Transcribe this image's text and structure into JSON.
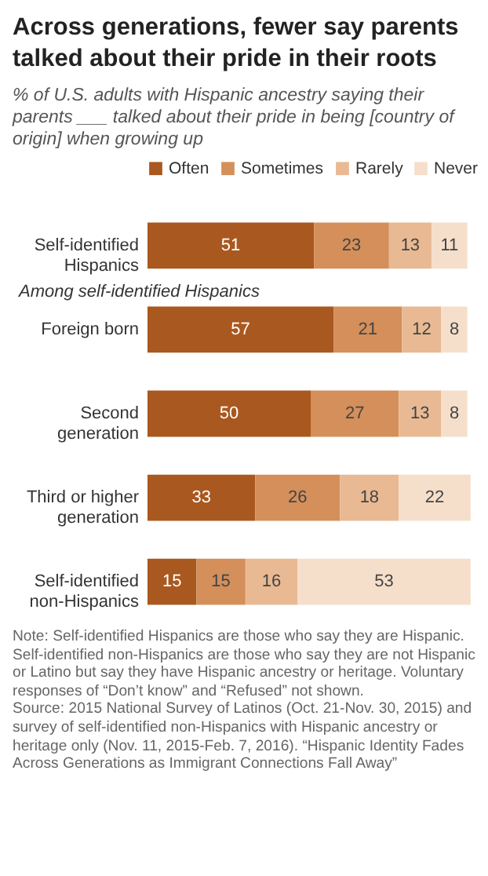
{
  "chart_data": {
    "type": "bar",
    "orientation": "horizontal",
    "stacked": true,
    "data_labels": true,
    "legend": "top",
    "title": "Across generations, fewer say parents talked about their pride in their roots",
    "subtitle": "% of U.S. adults with Hispanic ancestry saying their parents ___ talked about their pride in being [country of origin] when growing up",
    "categories": [
      "Self-identified Hispanics",
      "Foreign born",
      "Second generation",
      "Third or higher generation",
      "Self-identified non-Hispanics"
    ],
    "xlim": [
      0,
      100
    ],
    "series": [
      {
        "name": "Often",
        "color": "#a9581f",
        "values": [
          51,
          57,
          50,
          33,
          15
        ]
      },
      {
        "name": "Sometimes",
        "color": "#d48f5a",
        "values": [
          23,
          21,
          27,
          26,
          15
        ]
      },
      {
        "name": "Rarely",
        "color": "#e8b993",
        "values": [
          13,
          12,
          13,
          18,
          16
        ]
      },
      {
        "name": "Never",
        "color": "#f5dfcb",
        "values": [
          11,
          8,
          8,
          22,
          53
        ]
      }
    ],
    "annotations": [
      "Among self-identified Hispanics",
      "Note: Self-identified Hispanics are those who say they are Hispanic. Self-identified non-Hispanics are those who say they are not Hispanic or Latino but say they have Hispanic ancestry or heritage. Voluntary responses of “Don’t know” and “Refused” not shown.",
      "Source: 2015 National Survey of Latinos (Oct. 21-Nov. 30, 2015) and survey of self-identified non-Hispanics with Hispanic ancestry or heritage only (Nov. 11, 2015-Feb. 7, 2016). “Hispanic Identity Fades Across Generations as Immigrant Connections Fall Away”"
    ]
  }
}
